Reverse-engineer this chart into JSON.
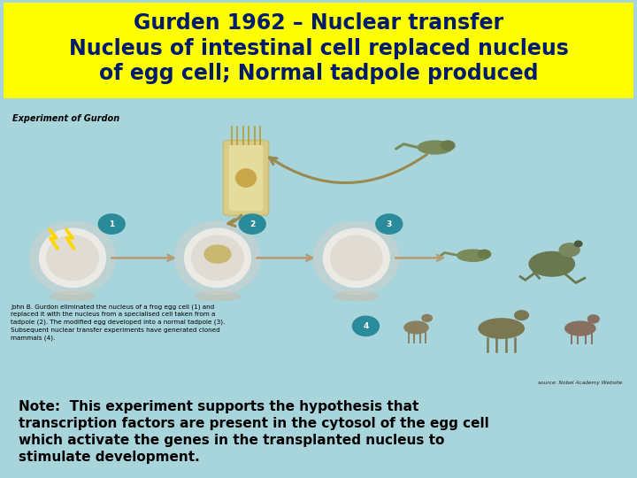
{
  "title_line1": "Gurden 1962 – Nuclear transfer",
  "title_line2": "Nucleus of intestinal cell replaced nucleus",
  "title_line3": "of egg cell; Normal tadpole produced",
  "title_bg": "#FFFF00",
  "title_text_color": "#001B6E",
  "main_bg": "#A8D4DC",
  "image_bg": "#FFFFFF",
  "note_text": "Note:  This experiment supports the hypothesis that\ntranscription factors are present in the cytosol of the egg cell\nwhich activate the genes in the transplanted nucleus to\nstimulate development.",
  "note_text_color": "#000000",
  "note_font_size": 11,
  "title_font_size": 17,
  "fig_width": 7.2,
  "fig_height": 5.4,
  "dpi": 100
}
